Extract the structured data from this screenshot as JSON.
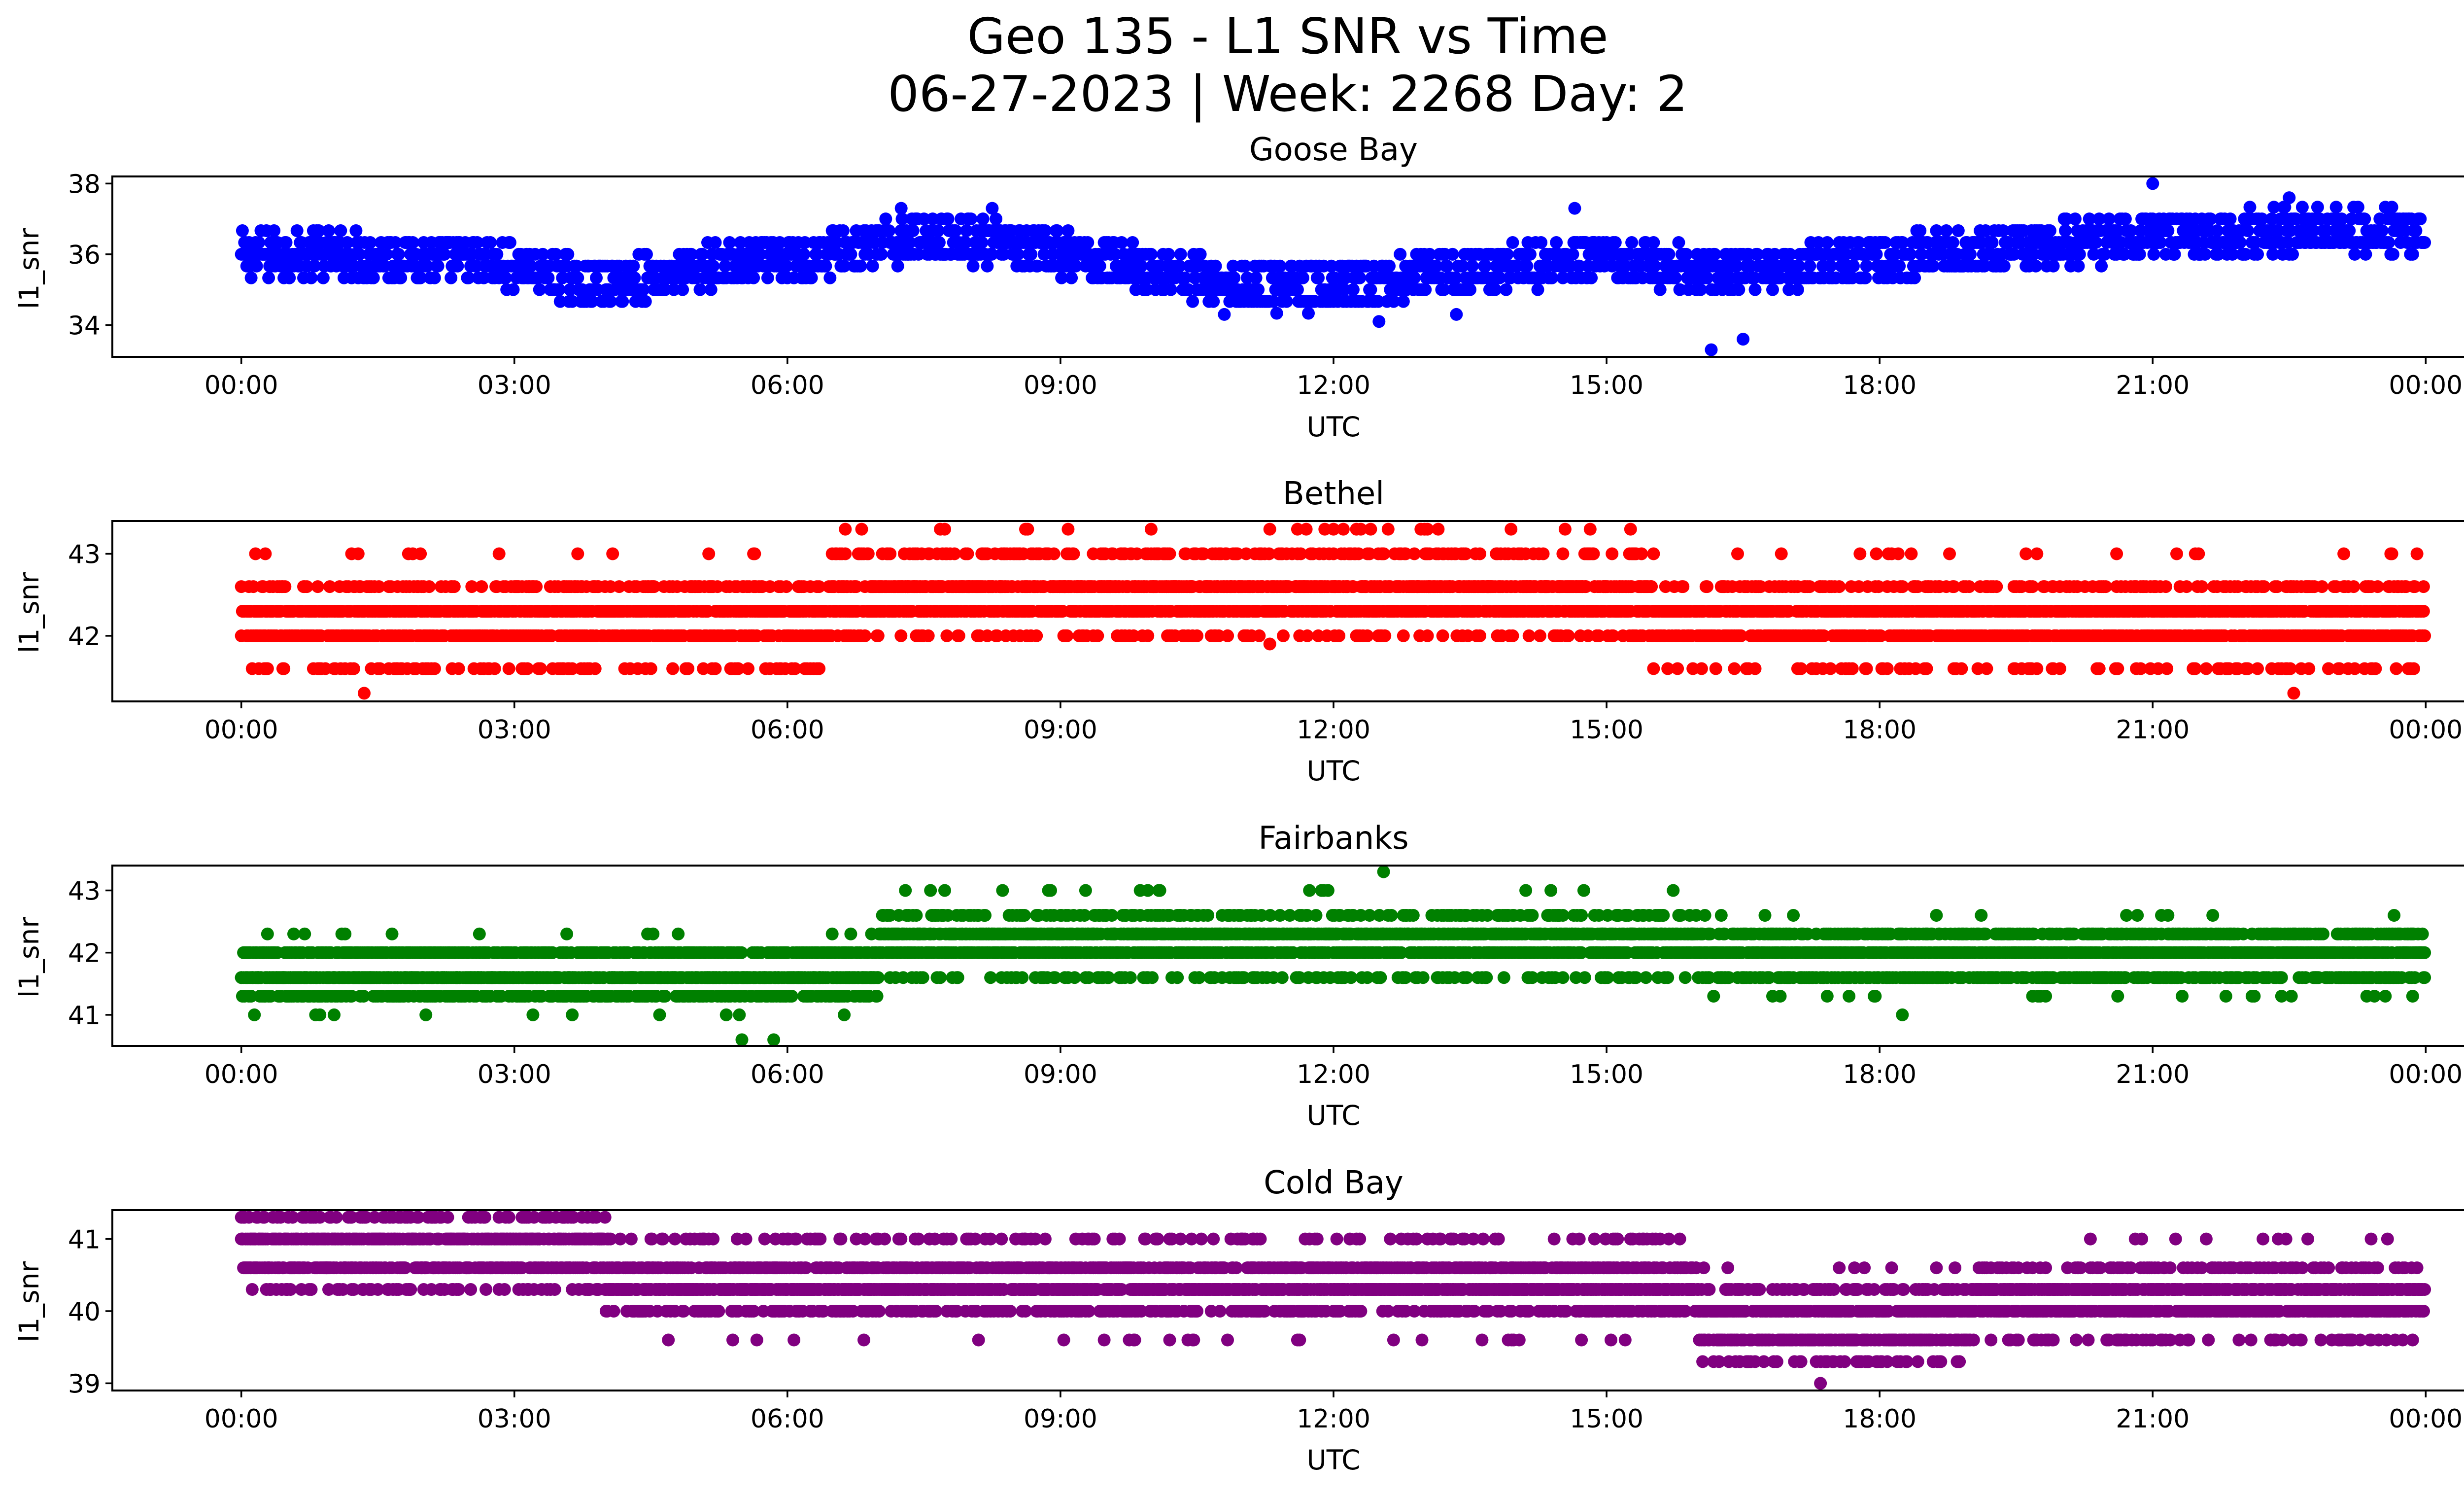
{
  "figure": {
    "title_line1": "Geo 135 - L1 SNR vs Time",
    "title_line2": "06-27-2023 | Week: 2268 Day: 2"
  },
  "chart_data": [
    {
      "type": "scatter",
      "title": "Goose Bay",
      "xlabel": "UTC",
      "ylabel": "l1_snr",
      "color": "#0000ff",
      "xlim": [
        "-01:25",
        "25:25"
      ],
      "ylim": [
        33.1,
        38.2
      ],
      "x_ticks": [
        "00:00",
        "03:00",
        "06:00",
        "09:00",
        "12:00",
        "15:00",
        "18:00",
        "21:00",
        "00:00"
      ],
      "y_ticks": [
        34,
        36,
        38
      ],
      "trend_hours": [
        0,
        1,
        2,
        3,
        3.5,
        4,
        5,
        6,
        7,
        7.5,
        8,
        9,
        10,
        11,
        12,
        13,
        14,
        15,
        16,
        17,
        18,
        19,
        20,
        21,
        22,
        23,
        24
      ],
      "trend_values": [
        36.0,
        36.0,
        35.9,
        35.7,
        35.3,
        35.2,
        35.6,
        35.8,
        36.3,
        36.5,
        36.4,
        36.0,
        35.6,
        35.1,
        35.0,
        35.4,
        35.7,
        35.8,
        35.6,
        35.6,
        35.9,
        36.1,
        36.3,
        36.5,
        36.6,
        36.8,
        36.5
      ],
      "spread": 0.6,
      "outliers": [
        [
          21.0,
          38.0
        ],
        [
          16.15,
          33.3
        ],
        [
          16.5,
          33.6
        ],
        [
          22.5,
          37.6
        ],
        [
          7.25,
          37.3
        ],
        [
          14.65,
          37.3
        ],
        [
          8.25,
          37.3
        ],
        [
          12.5,
          34.1
        ],
        [
          13.35,
          34.3
        ],
        [
          10.8,
          34.3
        ]
      ]
    },
    {
      "type": "scatter",
      "title": "Bethel",
      "xlabel": "UTC",
      "ylabel": "l1_snr",
      "color": "#ff0000",
      "xlim": [
        "-01:25",
        "25:25"
      ],
      "ylim": [
        41.2,
        43.4
      ],
      "x_ticks": [
        "00:00",
        "03:00",
        "06:00",
        "09:00",
        "12:00",
        "15:00",
        "18:00",
        "21:00",
        "00:00"
      ],
      "y_ticks": [
        42,
        43
      ],
      "levels": [
        41.3,
        41.6,
        42.0,
        42.3,
        42.6,
        43.0,
        43.3
      ],
      "dense_levels": [
        42.0,
        42.3
      ],
      "level_hours": [
        [
          0,
          24
        ],
        [
          0,
          24
        ]
      ],
      "outliers": [
        [
          1.35,
          41.3
        ],
        [
          22.55,
          41.3
        ],
        [
          11.3,
          43.3
        ],
        [
          11.7,
          43.3
        ],
        [
          12.0,
          43.3
        ],
        [
          12.3,
          43.3
        ],
        [
          12.6,
          43.3
        ],
        [
          13.0,
          43.3
        ],
        [
          13.15,
          43.3
        ],
        [
          13.95,
          43.3
        ],
        [
          11.3,
          41.9
        ],
        [
          12.2,
          42.3
        ],
        [
          13.1,
          42.3
        ],
        [
          13.85,
          42.3
        ],
        [
          10.2,
          42.0
        ],
        [
          10.4,
          42.0
        ]
      ]
    },
    {
      "type": "scatter",
      "title": "Fairbanks",
      "xlabel": "UTC",
      "ylabel": "l1_snr",
      "color": "#008000",
      "xlim": [
        "-01:25",
        "25:25"
      ],
      "ylim": [
        40.5,
        43.4
      ],
      "x_ticks": [
        "00:00",
        "03:00",
        "06:00",
        "09:00",
        "12:00",
        "15:00",
        "18:00",
        "21:00",
        "00:00"
      ],
      "y_ticks": [
        41,
        42,
        43
      ],
      "levels": [
        40.6,
        41.0,
        41.3,
        41.6,
        42.0,
        42.3,
        42.6,
        43.0,
        43.3
      ],
      "outliers": [
        [
          5.5,
          40.6
        ],
        [
          5.85,
          40.6
        ],
        [
          12.55,
          43.3
        ],
        [
          14.75,
          43.0
        ],
        [
          18.25,
          41.0
        ],
        [
          9.65,
          41.6
        ]
      ]
    },
    {
      "type": "scatter",
      "title": "Cold Bay",
      "xlabel": "UTC",
      "ylabel": "l1_snr",
      "color": "#800080",
      "xlim": [
        "-01:25",
        "25:25"
      ],
      "ylim": [
        38.9,
        41.4
      ],
      "x_ticks": [
        "00:00",
        "03:00",
        "06:00",
        "09:00",
        "12:00",
        "15:00",
        "18:00",
        "21:00",
        "00:00"
      ],
      "y_ticks": [
        39,
        40,
        41
      ],
      "levels": [
        39.0,
        39.3,
        39.6,
        40.0,
        40.3,
        40.6,
        41.0,
        41.3
      ],
      "outliers": [
        [
          17.35,
          39.0
        ],
        [
          5.75,
          41.0
        ],
        [
          10.4,
          39.6
        ]
      ]
    }
  ]
}
